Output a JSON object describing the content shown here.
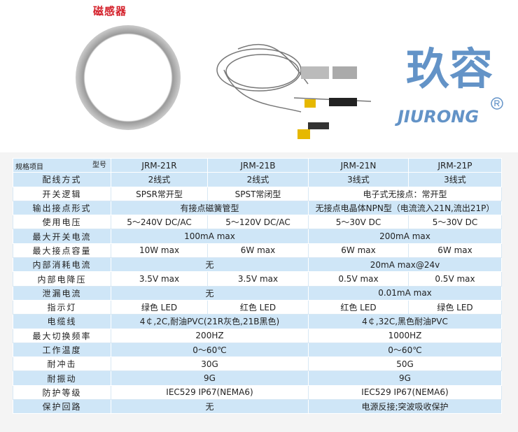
{
  "title": "磁感器",
  "watermark": {
    "brand": "JIURONG",
    "chinese": "玖容",
    "color": "#2f6fb5"
  },
  "table": {
    "header": {
      "spec_label": "规格项目",
      "model_label": "型号",
      "models": [
        "JRM-21R",
        "JRM-21B",
        "JRM-21N",
        "JRM-21P"
      ]
    },
    "rows": [
      {
        "label": "配线方式",
        "cells": [
          {
            "t": "2线式",
            "span": 1
          },
          {
            "t": "2线式",
            "span": 1
          },
          {
            "t": "3线式",
            "span": 1
          },
          {
            "t": "3线式",
            "span": 1
          }
        ]
      },
      {
        "label": "开关逻辑",
        "cells": [
          {
            "t": "SPSR常开型",
            "span": 1
          },
          {
            "t": "SPST常闭型",
            "span": 1
          },
          {
            "t": "电子式无接点：常开型",
            "span": 2
          }
        ]
      },
      {
        "label": "输出接点形式",
        "cells": [
          {
            "t": "有接点磁簧管型",
            "span": 2
          },
          {
            "t": "无接点电晶体NPN型（电流流入21N,流出21P）",
            "span": 2
          }
        ]
      },
      {
        "label": "使用电压",
        "cells": [
          {
            "t": "5～240V DC/AC",
            "span": 1
          },
          {
            "t": "5～120V DC/AC",
            "span": 1
          },
          {
            "t": "5～30V DC",
            "span": 1
          },
          {
            "t": "5～30V DC",
            "span": 1
          }
        ]
      },
      {
        "label": "最大开关电流",
        "cells": [
          {
            "t": "100mA  max",
            "span": 2
          },
          {
            "t": "200mA  max",
            "span": 2
          }
        ]
      },
      {
        "label": "最大接点容量",
        "cells": [
          {
            "t": "10W  max",
            "span": 1
          },
          {
            "t": "6W  max",
            "span": 1
          },
          {
            "t": "6W  max",
            "span": 1
          },
          {
            "t": "6W  max",
            "span": 1
          }
        ]
      },
      {
        "label": "内部消耗电流",
        "cells": [
          {
            "t": "无",
            "span": 2
          },
          {
            "t": "20mA  max@24v",
            "span": 2
          }
        ]
      },
      {
        "label": "内部电降压",
        "cells": [
          {
            "t": "3.5V  max",
            "span": 1
          },
          {
            "t": "3.5V  max",
            "span": 1
          },
          {
            "t": "0.5V  max",
            "span": 1
          },
          {
            "t": "0.5V  max",
            "span": 1
          }
        ]
      },
      {
        "label": "泄漏电流",
        "cells": [
          {
            "t": "无",
            "span": 2
          },
          {
            "t": "0.01mA  max",
            "span": 2
          }
        ]
      },
      {
        "label": "指示灯",
        "cells": [
          {
            "t": "绿色 LED",
            "span": 1
          },
          {
            "t": "红色 LED",
            "span": 1
          },
          {
            "t": "红色 LED",
            "span": 1
          },
          {
            "t": "绿色 LED",
            "span": 1
          }
        ]
      },
      {
        "label": "电缆线",
        "cells": [
          {
            "t": "4￠,2C,耐油PVC(21R灰色,21B黑色)",
            "span": 2
          },
          {
            "t": "4￠,32C,黑色耐油PVC",
            "span": 2
          }
        ]
      },
      {
        "label": "最大切换频率",
        "cells": [
          {
            "t": "200HZ",
            "span": 2
          },
          {
            "t": "1000HZ",
            "span": 2
          }
        ]
      },
      {
        "label": "工作温度",
        "cells": [
          {
            "t": "0～60℃",
            "span": 2
          },
          {
            "t": "0～60℃",
            "span": 2
          }
        ]
      },
      {
        "label": "耐冲击",
        "cells": [
          {
            "t": "30G",
            "span": 2
          },
          {
            "t": "50G",
            "span": 2
          }
        ]
      },
      {
        "label": "耐振动",
        "cells": [
          {
            "t": "9G",
            "span": 2
          },
          {
            "t": "9G",
            "span": 2
          }
        ]
      },
      {
        "label": "防护等级",
        "cells": [
          {
            "t": "IEC529  IP67(NEMA6)",
            "span": 2
          },
          {
            "t": "IEC529  IP67(NEMA6)",
            "span": 2
          }
        ]
      },
      {
        "label": "保护回路",
        "cells": [
          {
            "t": "无",
            "span": 2
          },
          {
            "t": "电源反接;突波吸收保护",
            "span": 2
          }
        ]
      }
    ]
  }
}
